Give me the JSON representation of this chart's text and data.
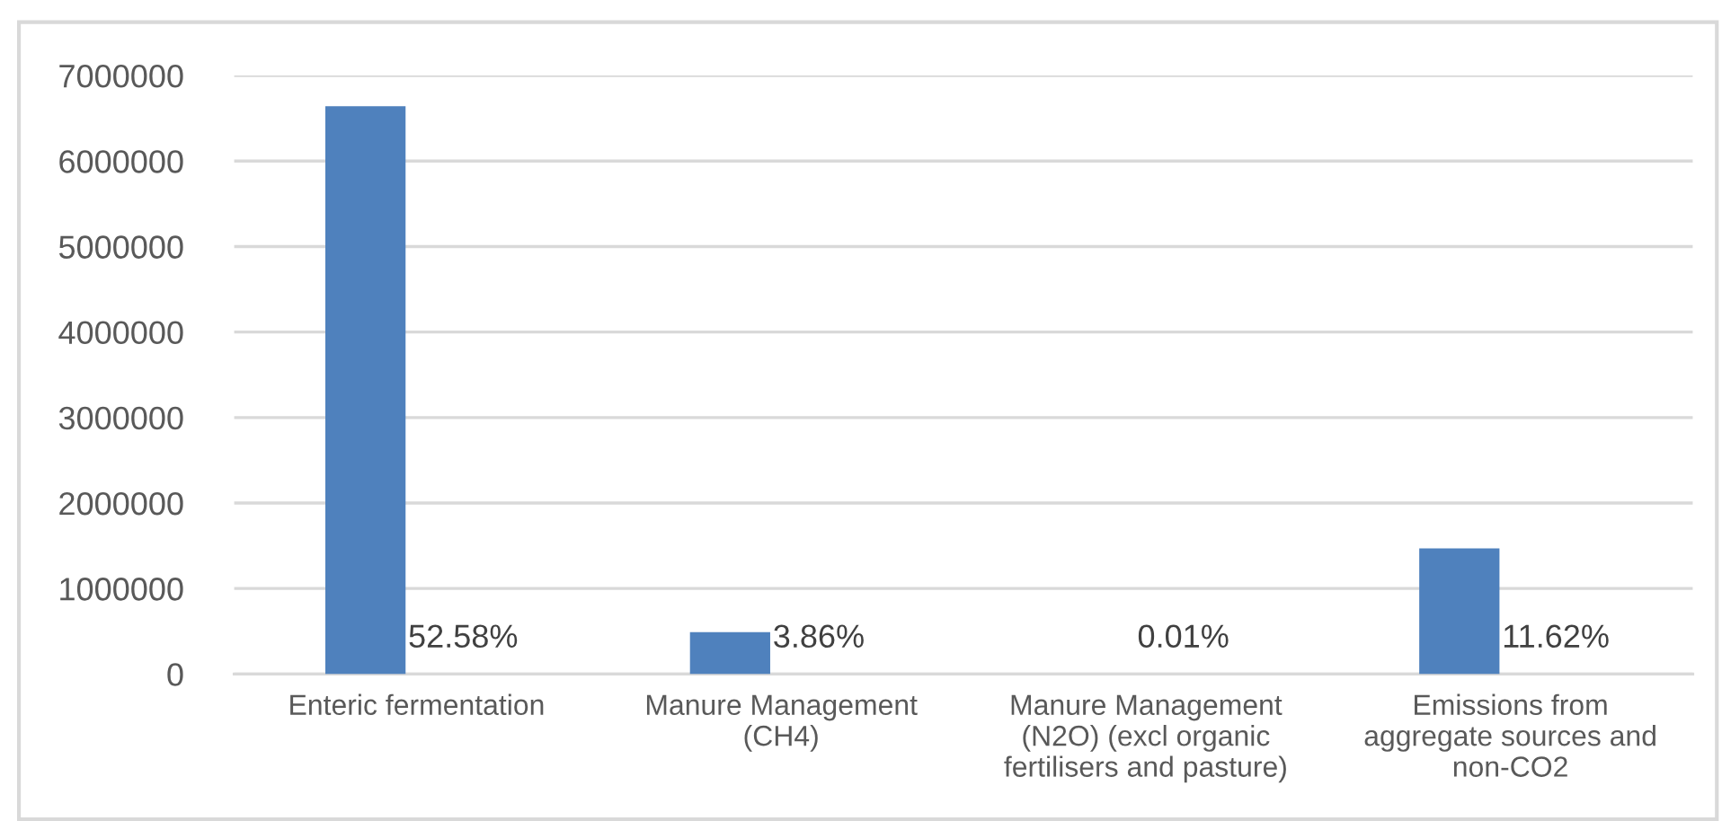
{
  "chart_data": {
    "type": "bar",
    "categories": [
      "Enteric fermentation",
      "Manure Management\n(CH4)",
      "Manure Management\n(N2O) (excl organic\nfertilisers and pasture)",
      "Emissions from\naggregate sources and\nnon-CO2"
    ],
    "values": [
      6640000,
      490000,
      null,
      1470000
    ],
    "color": "#4f81bd",
    "annotations": [
      "52.58%",
      "3.86%",
      "0.01%",
      "11.62%"
    ],
    "ylim": [
      0,
      7000000
    ],
    "yticks": [
      0,
      1000000,
      2000000,
      3000000,
      4000000,
      5000000,
      6000000,
      7000000
    ],
    "grid": "y"
  }
}
